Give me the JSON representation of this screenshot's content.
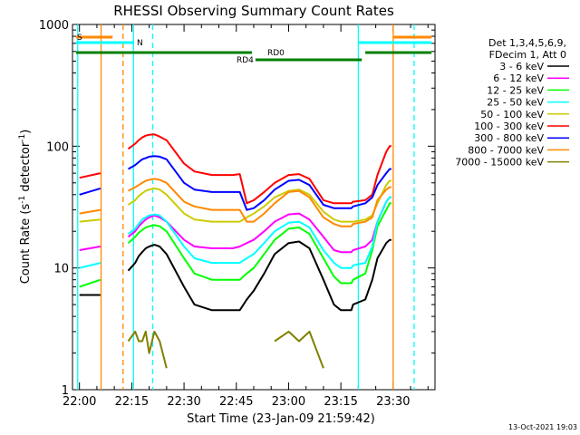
{
  "chart_data": {
    "type": "line",
    "title": "RHESSI Observing Summary Count Rates",
    "xlabel": "Start Time (23-Jan-09 21:59:42)",
    "ylabel_main": "Count Rate (s",
    "ylabel_sup1": "-1",
    "ylabel_mid": " detector",
    "ylabel_sup2": "-1",
    "ylabel_end": ")",
    "y_scale": "log",
    "ylim": [
      1,
      1000
    ],
    "x_minutes_after_2200_range": [
      -2,
      102
    ],
    "x_tick_minutes": [
      0,
      15,
      30,
      45,
      60,
      75,
      90
    ],
    "x_tick_labels": [
      "22:00",
      "22:15",
      "22:30",
      "22:45",
      "23:00",
      "23:15",
      "23:30"
    ],
    "y_ticks": [
      1,
      10,
      100,
      1000
    ],
    "y_tick_labels": [
      "1",
      "10",
      "100",
      "1000"
    ],
    "legend_header": [
      "Det 1,3,4,5,6,9,",
      "FDecim 1, Att 0"
    ],
    "legend_position": "right",
    "footer": "13-Oct-2021 19:03",
    "x_sample_minutes": [
      0,
      6,
      6.5,
      10,
      14,
      16,
      17,
      18,
      19,
      20,
      21.5,
      23,
      25,
      30,
      33,
      38,
      44,
      46,
      48,
      50,
      53,
      56,
      60,
      63,
      66,
      70,
      73,
      75,
      78,
      78.5,
      82,
      84,
      85.5,
      88,
      89,
      89.5
    ],
    "series": [
      {
        "name": "3 - 6 keV",
        "color": "#000000",
        "values": [
          6,
          6,
          null,
          null,
          9.5,
          11,
          12.5,
          13.5,
          14.5,
          15,
          15.5,
          15,
          13,
          7,
          5,
          4.5,
          4.5,
          4.5,
          5.5,
          6.5,
          9,
          13,
          16,
          16.5,
          14.5,
          8,
          5,
          4.5,
          4.5,
          5,
          5.5,
          8,
          12,
          16,
          17,
          17
        ]
      },
      {
        "name": "6 - 12 keV",
        "color": "#ff00ff",
        "values": [
          14,
          15,
          null,
          null,
          18,
          20,
          22,
          23.5,
          25,
          26,
          27,
          26,
          24,
          17,
          15,
          14.5,
          14.5,
          15,
          16,
          17,
          20,
          24,
          27.5,
          28,
          25,
          18,
          14,
          13.5,
          13.5,
          14,
          15,
          17,
          24,
          35,
          38,
          38
        ]
      },
      {
        "name": "12 - 25 keV",
        "color": "#00ff00",
        "values": [
          7,
          8,
          null,
          null,
          16,
          18,
          19.5,
          20.5,
          21.5,
          22,
          22.5,
          22,
          20,
          12,
          9,
          8,
          8,
          8,
          9,
          10,
          13,
          17,
          21,
          21.5,
          19,
          12,
          8.5,
          7.5,
          7.5,
          8,
          9,
          14,
          22,
          30,
          34,
          34
        ]
      },
      {
        "name": "25 - 50 keV",
        "color": "#00ffff",
        "values": [
          10,
          11,
          null,
          null,
          19,
          21,
          23,
          25,
          26,
          27,
          27.5,
          27,
          24,
          15,
          12,
          11,
          11,
          11,
          12,
          13,
          16,
          20,
          23.5,
          24,
          21.5,
          14,
          11,
          10,
          10,
          10.5,
          11,
          15,
          24,
          35,
          38,
          38
        ]
      },
      {
        "name": "50 - 100 keV",
        "color": "#cccc00",
        "values": [
          24,
          25,
          null,
          null,
          33,
          36,
          39,
          41,
          43,
          44,
          45,
          44,
          40,
          28,
          25,
          24,
          24,
          24,
          26,
          28,
          32,
          38,
          43,
          44,
          40,
          29,
          25,
          24,
          24,
          24,
          25,
          27,
          34,
          48,
          52,
          52
        ]
      },
      {
        "name": "100 - 300 keV",
        "color": "#ff0000",
        "values": [
          55,
          60,
          null,
          null,
          95,
          105,
          112,
          118,
          122,
          124,
          125,
          120,
          112,
          72,
          62,
          58,
          58,
          59,
          34,
          36,
          42,
          50,
          58,
          59,
          54,
          36,
          34,
          34,
          34,
          35,
          36,
          40,
          58,
          90,
          100,
          100
        ]
      },
      {
        "name": "300 - 800 keV",
        "color": "#0000ff",
        "values": [
          40,
          45,
          null,
          null,
          65,
          70,
          74,
          78,
          80,
          82,
          83,
          82,
          78,
          50,
          44,
          42,
          42,
          42,
          30,
          31,
          36,
          44,
          52,
          53,
          48,
          33,
          31,
          31,
          31,
          32,
          34,
          38,
          48,
          60,
          65,
          65
        ]
      },
      {
        "name": "800 - 7000 keV",
        "color": "#ff8800",
        "values": [
          28,
          30,
          null,
          null,
          43,
          46,
          48,
          50,
          52,
          53,
          54,
          53,
          50,
          35,
          32,
          30,
          30,
          30,
          24,
          24,
          28,
          34,
          42,
          43,
          38,
          26,
          23,
          22,
          22,
          23,
          24,
          26,
          36,
          44,
          46,
          46
        ]
      },
      {
        "name": "7000 - 15000 keV",
        "color": "#808000",
        "values": [
          null,
          null,
          null,
          null,
          2.5,
          3,
          2.5,
          2.5,
          3,
          2,
          3,
          2.5,
          1.5,
          null,
          null,
          null,
          null,
          null,
          null,
          null,
          null,
          2.5,
          3,
          2.5,
          3,
          1.5,
          null,
          null,
          null,
          null,
          null,
          null,
          null,
          null,
          null,
          null
        ]
      }
    ],
    "attenuator_state": {
      "label": "S",
      "color": "#ff8800",
      "segments": [
        [
          -1,
          9.5
        ],
        [
          90,
          101
        ]
      ]
    },
    "night_state": {
      "label": "N",
      "color": "#00ffff",
      "segments": [
        [
          -1,
          15.5
        ],
        [
          80,
          101
        ]
      ]
    },
    "decimation_state": {
      "labels": [
        "RD4",
        "RD0"
      ],
      "color": "#008000",
      "segments": [
        [
          -1,
          49.5
        ],
        [
          50.5,
          81
        ],
        [
          82,
          101
        ]
      ]
    },
    "vertical_markers": [
      {
        "minute": -0.5,
        "color": "#00ffff",
        "style": "solid"
      },
      {
        "minute": 6.2,
        "color": "#ff8800",
        "style": "solid"
      },
      {
        "minute": 12.5,
        "color": "#ff8800",
        "style": "dashed"
      },
      {
        "minute": 15.5,
        "color": "#00ffff",
        "style": "solid"
      },
      {
        "minute": 21,
        "color": "#00ffff",
        "style": "dashed"
      },
      {
        "minute": 80,
        "color": "#00ffff",
        "style": "solid"
      },
      {
        "minute": 90,
        "color": "#ff8800",
        "style": "solid"
      },
      {
        "minute": 96,
        "color": "#00ffff",
        "style": "dashed"
      }
    ]
  }
}
